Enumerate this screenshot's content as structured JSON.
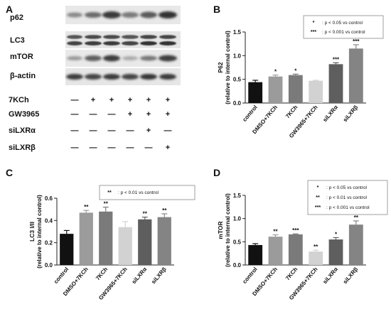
{
  "panels": {
    "A": {
      "label": "A",
      "blot_labels": [
        "p62",
        "LC3",
        "mTOR",
        "β-actin"
      ],
      "treatments": [
        {
          "name": "7KCh",
          "marks": [
            "—",
            "+",
            "+",
            "+",
            "+",
            "+"
          ]
        },
        {
          "name": "GW3965",
          "marks": [
            "—",
            "—",
            "—",
            "+",
            "+",
            "+"
          ]
        },
        {
          "name": "siLXRα",
          "marks": [
            "—",
            "—",
            "—",
            "—",
            "+",
            "—"
          ]
        },
        {
          "name": "siLXRβ",
          "marks": [
            "—",
            "—",
            "—",
            "—",
            "—",
            "+"
          ]
        }
      ]
    },
    "B": {
      "label": "B"
    },
    "C": {
      "label": "C"
    },
    "D": {
      "label": "D"
    }
  },
  "colors": {
    "control": "#111111",
    "dmso_7kch": "#9b9b9b",
    "7kch": "#7a7a7a",
    "gw3965_7kch": "#d2d2d2",
    "silxra": "#5e5e5e",
    "silxrb": "#848484"
  },
  "chart_data": [
    {
      "panel": "B",
      "type": "bar",
      "categories": [
        "control",
        "DMSO+7KCh",
        "7KCh",
        "GW3965+7KCh",
        "siLXRα",
        "siLXRβ"
      ],
      "values": [
        0.44,
        0.56,
        0.59,
        0.47,
        0.82,
        1.15
      ],
      "errors": [
        0.04,
        0.03,
        0.02,
        0.01,
        0.03,
        0.08
      ],
      "significance": [
        "",
        "*",
        "*",
        "",
        "***",
        "***"
      ],
      "ylabel": "P62",
      "ylabel2": "(relative to internal control)",
      "ylim": [
        0,
        1.5
      ],
      "yticks": [
        "0.0",
        "0.5",
        "1.0",
        "1.5"
      ],
      "legend": [
        {
          "stars": "*",
          "text": ": p < 0.05 vs control"
        },
        {
          "stars": "***",
          "text": ": p < 0.001 vs control"
        }
      ]
    },
    {
      "panel": "C",
      "type": "bar",
      "categories": [
        "control",
        "DMSO+7KCh",
        "7KCh",
        "GW3965+7KCh",
        "siLXRα",
        "siLXRβ"
      ],
      "values": [
        0.28,
        0.47,
        0.48,
        0.34,
        0.41,
        0.43
      ],
      "errors": [
        0.03,
        0.02,
        0.04,
        0.05,
        0.02,
        0.03
      ],
      "significance": [
        "",
        "**",
        "**",
        "",
        "**",
        "**"
      ],
      "ylabel": "LC3 I/II",
      "ylabel2": "(relative to internal control)",
      "ylim": [
        0,
        0.6
      ],
      "yticks": [
        "0.0",
        "0.2",
        "0.4",
        "0.6"
      ],
      "legend": [
        {
          "stars": "**",
          "text": ": p < 0.01 vs control"
        }
      ]
    },
    {
      "panel": "D",
      "type": "bar",
      "categories": [
        "control",
        "DMSO+7KCh",
        "7KCh",
        "GW3965+7KCh",
        "siLXRα",
        "siLXRβ"
      ],
      "values": [
        0.43,
        0.61,
        0.66,
        0.29,
        0.55,
        0.87
      ],
      "errors": [
        0.03,
        0.04,
        0.01,
        0.03,
        0.04,
        0.08
      ],
      "significance": [
        "",
        "**",
        "***",
        "**",
        "*",
        "**"
      ],
      "ylabel": "mTOR",
      "ylabel2": "(relative to internal control)",
      "ylim": [
        0,
        1.5
      ],
      "yticks": [
        "0.0",
        "0.5",
        "1.0",
        "1.5"
      ],
      "legend": [
        {
          "stars": "*",
          "text": ": p < 0.05 vs control"
        },
        {
          "stars": "**",
          "text": ": p < 0.01 vs control"
        },
        {
          "stars": "***",
          "text": ": p < 0.001 vs control"
        }
      ]
    }
  ]
}
